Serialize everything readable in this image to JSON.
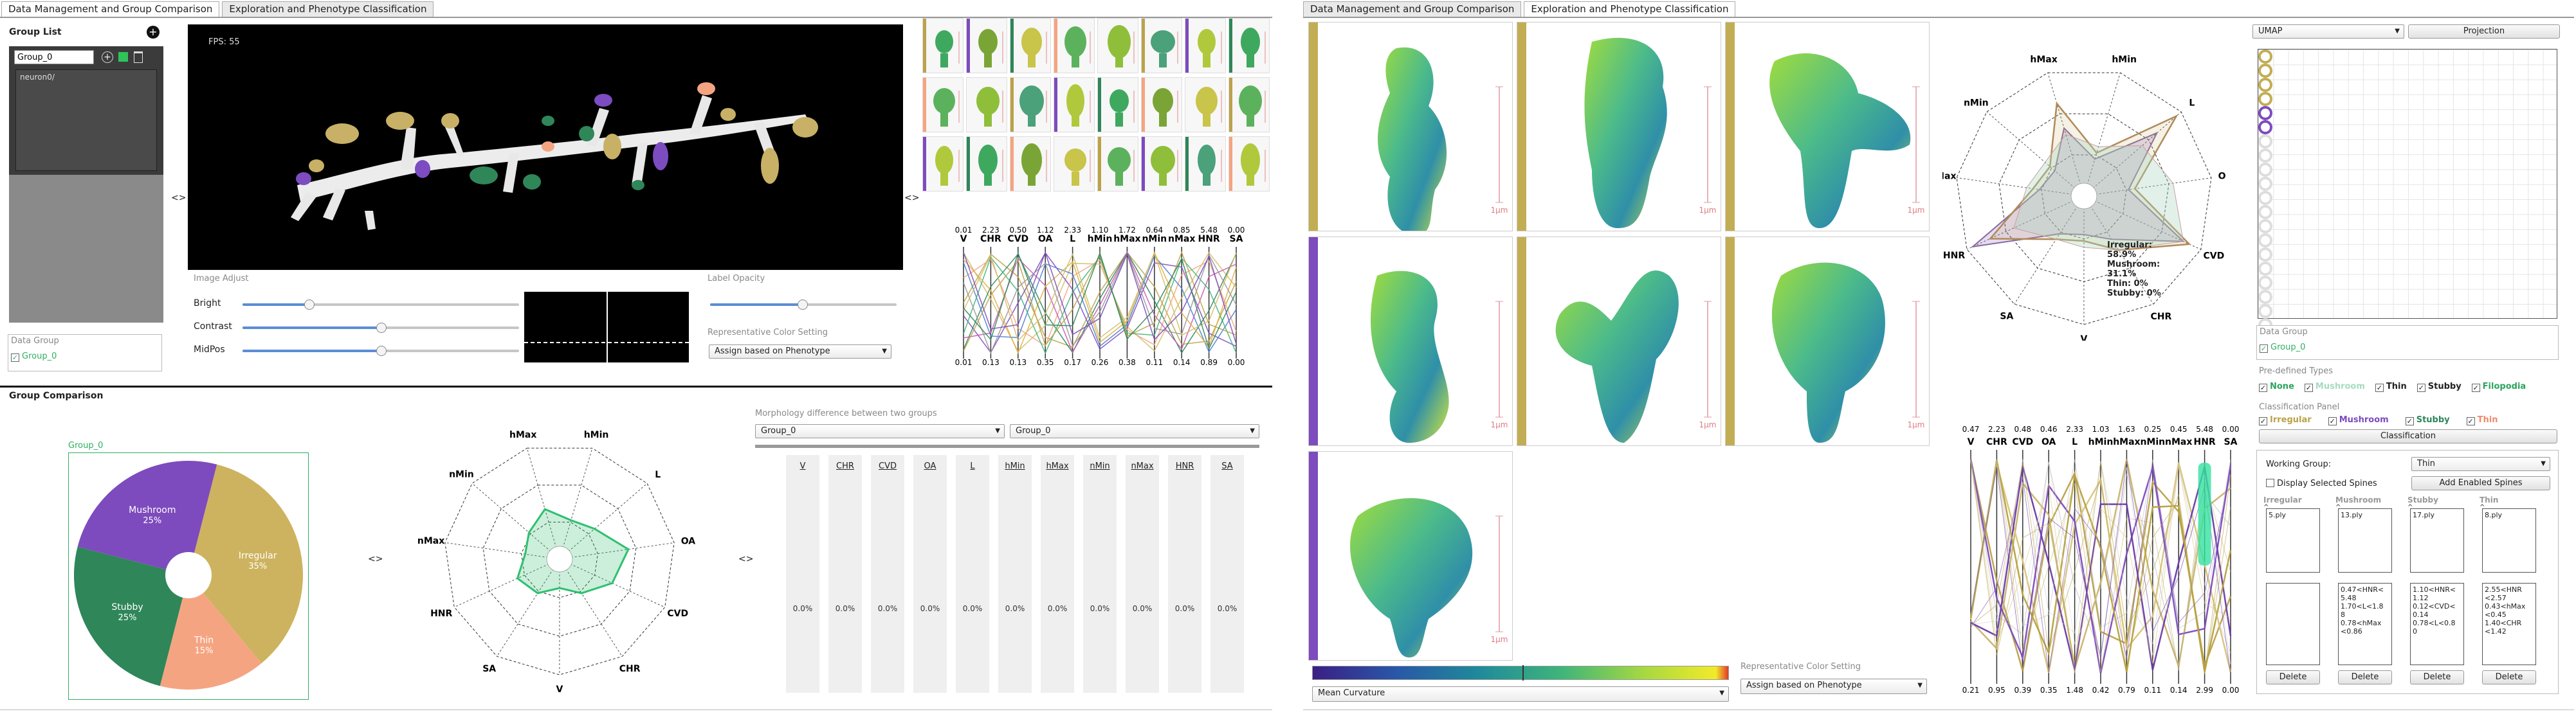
{
  "left_tabs": [
    "Data Management and Group Comparison",
    "Exploration and Phenotype Classification"
  ],
  "right_tabs": [
    "Data Management and Group Comparison",
    "Exploration and Phenotype Classification"
  ],
  "group_list": {
    "title": "Group List",
    "group_name_value": "Group_0",
    "items": [
      "neuron0/"
    ],
    "data_group_title": "Data Group",
    "data_group_item": "Group_0"
  },
  "viewer": {
    "fps": "FPS: 55",
    "swap_left": "<>",
    "swap_right": "<>"
  },
  "image_adjust": {
    "title": "Image Adjust",
    "sliders": [
      {
        "label": "Bright",
        "value": 0.3
      },
      {
        "label": "Contrast",
        "value": 0.6
      },
      {
        "label": "MidPos",
        "value": 0.6
      }
    ]
  },
  "label_opacity": {
    "title": "Label Opacity",
    "value": 0.43
  },
  "color_setting_left": {
    "title": "Representative Color Setting",
    "value": "Assign based on Phenotype"
  },
  "pc_left": {
    "axes": [
      "V",
      "CHR",
      "CVD",
      "OA",
      "L",
      "hMin",
      "hMax",
      "nMin",
      "nMax",
      "HNR",
      "SA"
    ],
    "top": [
      "0.01",
      "2.23",
      "0.50",
      "1.12",
      "2.33",
      "1.10",
      "1.72",
      "0.64",
      "0.85",
      "5.48",
      "0.00"
    ],
    "bottom": [
      "0.01",
      "0.13",
      "0.13",
      "0.35",
      "0.17",
      "0.26",
      "0.38",
      "0.11",
      "0.14",
      "0.89",
      "0.00"
    ]
  },
  "group_comparison": {
    "title": "Group Comparison",
    "pie_group_label": "Group_0",
    "pie": [
      {
        "name": "Irregular",
        "pct": "35%",
        "value": 35,
        "color": "#cdb35f"
      },
      {
        "name": "Thin",
        "pct": "15%",
        "value": 15,
        "color": "#f5a482"
      },
      {
        "name": "Stubby",
        "pct": "25%",
        "value": 25,
        "color": "#2f8659"
      },
      {
        "name": "Mushroom",
        "pct": "25%",
        "value": 25,
        "color": "#7d4bbd"
      }
    ],
    "swap1": "<>",
    "swap2": "<>",
    "radar_axes": [
      "hMax",
      "hMin",
      "L",
      "OA",
      "CVD",
      "CHR",
      "V",
      "SA",
      "HNR",
      "nMax",
      "nMin"
    ],
    "radar_values": [
      0.45,
      0.35,
      0.4,
      0.6,
      0.5,
      0.35,
      0.25,
      0.35,
      0.4,
      0.3,
      0.35
    ],
    "diff_title": "Morphology difference between two groups",
    "diff_group_a": "Group_0",
    "diff_group_b": "Group_0",
    "diff_labels": [
      "V",
      "CHR",
      "CVD",
      "OA",
      "L",
      "hMin",
      "hMax",
      "nMin",
      "nMax",
      "HNR",
      "SA"
    ],
    "diff_values": [
      "0.0%",
      "0.0%",
      "0.0%",
      "0.0%",
      "0.0%",
      "0.0%",
      "0.0%",
      "0.0%",
      "0.0%",
      "0.0%",
      "0.0%"
    ]
  },
  "exploration": {
    "scale_label": "1μm",
    "colormap_label": "Mean Curvature",
    "color_setting_title": "Representative Color Setting",
    "color_setting_value": "Assign based on Phenotype",
    "radar_axes": [
      "hMax",
      "hMin",
      "L",
      "OA",
      "CVD",
      "CHR",
      "V",
      "SA",
      "HNR",
      "nMax",
      "nMin"
    ],
    "radar_legend": [
      "Irregular:",
      "58.9%",
      "Mushroom:",
      "31.1%",
      "Thin: 0%",
      "Stubby: 0%"
    ],
    "pc_axes": [
      "V",
      "CHR",
      "CVD",
      "OA",
      "L",
      "hMin",
      "hMax",
      "nMin",
      "nMax",
      "HNR",
      "SA"
    ],
    "pc_top": [
      "0.47",
      "2.23",
      "0.48",
      "0.46",
      "2.33",
      "1.03",
      "1.63",
      "0.25",
      "0.45",
      "5.48",
      "0.00"
    ],
    "pc_bottom": [
      "0.21",
      "0.95",
      "0.39",
      "0.35",
      "1.48",
      "0.42",
      "0.79",
      "0.11",
      "0.14",
      "2.99",
      "0.00"
    ]
  },
  "projection": {
    "method": "UMAP",
    "button": "Projection"
  },
  "right_data_group": {
    "title": "Data Group",
    "item": "Group_0"
  },
  "predefined": {
    "title": "Pre-defined Types",
    "types": [
      {
        "name": "None",
        "color": "#2aa55c"
      },
      {
        "name": "Mushroom",
        "color": "#a6dcc0"
      },
      {
        "name": "Thin",
        "color": "#222222"
      },
      {
        "name": "Stubby",
        "color": "#222222"
      },
      {
        "name": "Filopodia",
        "color": "#2aa55c"
      }
    ]
  },
  "classification": {
    "title": "Classification Panel",
    "types": [
      {
        "name": "Irregular",
        "color": "#bba24a"
      },
      {
        "name": "Mushroom",
        "color": "#7d4bbd"
      },
      {
        "name": "Stubby",
        "color": "#2f8659"
      },
      {
        "name": "Thin",
        "color": "#f08a6a"
      }
    ],
    "button": "Classification",
    "working_group_label": "Working Group:",
    "working_group_value": "Thin",
    "display_selected": "Display Selected Spines",
    "add_enabled": "Add Enabled Spines",
    "columns": [
      {
        "name": "Irregular",
        "file": "5.ply",
        "rules": "",
        "delete": "Delete"
      },
      {
        "name": "Mushroom",
        "file": "13.ply",
        "rules": "0.47<HNR<\n5.48\n1.70<L<1.8\n8\n0.78<hMax\n<0.86",
        "delete": "Delete"
      },
      {
        "name": "Stubby",
        "file": "17.ply",
        "rules": "1.10<HNR<\n1.12\n0.12<CVD<\n0.14\n0.78<L<0.8\n0",
        "delete": "Delete"
      },
      {
        "name": "Thin",
        "file": "8.ply",
        "rules": "2.55<HNR\n<2.57\n0.43<hMax\n<0.45\n1.40<CHR\n<1.42",
        "delete": "Delete"
      }
    ]
  }
}
